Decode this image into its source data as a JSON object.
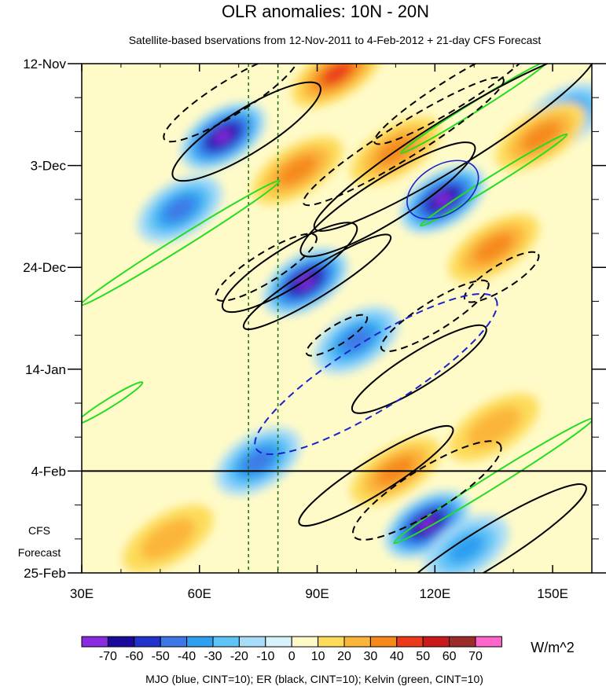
{
  "chart_data": {
    "type": "heatmap",
    "title": "OLR anomalies: 10N - 20N",
    "subtitle": "Satellite-based bservations from 12-Nov-2011 to 4-Feb-2012 + 21-day CFS Forecast",
    "x_axis": {
      "range": [
        30,
        160
      ],
      "ticks": [
        30,
        60,
        90,
        120,
        150
      ],
      "tick_labels": [
        "30E",
        "60E",
        "90E",
        "120E",
        "150E"
      ]
    },
    "y_axis": {
      "range_days": [
        0,
        105
      ],
      "ticks_days": [
        0,
        21,
        42,
        63,
        84,
        105
      ],
      "tick_labels": [
        "12-Nov",
        "3-Dec",
        "24-Dec",
        "14-Jan",
        "4-Feb",
        "25-Feb"
      ]
    },
    "forecast_start_day": 84,
    "forecast_label": [
      "CFS",
      "Forecast"
    ],
    "reference_lines_lon": [
      72.5,
      80
    ],
    "colorbar": {
      "unit": "W/m^2",
      "levels": [
        -70,
        -60,
        -50,
        -40,
        -30,
        -20,
        -10,
        0,
        10,
        20,
        30,
        40,
        50,
        60,
        70
      ],
      "level_labels": [
        "-70",
        "-60",
        "-50",
        "-40",
        "-30",
        "-20",
        "-10",
        "0",
        "10",
        "20",
        "30",
        "40",
        "50",
        "60",
        "70"
      ],
      "colors": [
        "#8a2be2",
        "#1a0a9c",
        "#2233cc",
        "#3f78e6",
        "#2f9ff0",
        "#5ec4f6",
        "#a8dcf8",
        "#d8f2fc",
        "#fffbc8",
        "#fddb5a",
        "#fbb53a",
        "#f58a1a",
        "#ea3a1a",
        "#c81a1a",
        "#9c2b2b",
        "#ff66cc"
      ]
    },
    "negative_centers": [
      {
        "lon": 66,
        "day": 15,
        "min": -70
      },
      {
        "lon": 122,
        "day": 28,
        "min": -70
      },
      {
        "lon": 87,
        "day": 45,
        "min": -70
      },
      {
        "lon": 100,
        "day": 57,
        "min": -40
      },
      {
        "lon": 118,
        "day": 95,
        "min": -70
      },
      {
        "lon": 153,
        "day": 11,
        "min": -40
      },
      {
        "lon": 55,
        "day": 30,
        "min": -40
      },
      {
        "lon": 75,
        "day": 82,
        "min": -40
      },
      {
        "lon": 128,
        "day": 100,
        "min": -30
      }
    ],
    "positive_centers": [
      {
        "lon": 85,
        "day": 22,
        "max": 30
      },
      {
        "lon": 110,
        "day": 18,
        "max": 30
      },
      {
        "lon": 135,
        "day": 38,
        "max": 30
      },
      {
        "lon": 147,
        "day": 15,
        "max": 30
      },
      {
        "lon": 95,
        "day": 2,
        "max": 40
      },
      {
        "lon": 110,
        "day": 84,
        "max": 30
      },
      {
        "lon": 135,
        "day": 75,
        "max": 20
      },
      {
        "lon": 52,
        "day": 98,
        "max": 20
      }
    ],
    "contour_sets": [
      {
        "name": "MJO",
        "color": "blue",
        "cint": 10
      },
      {
        "name": "ER",
        "color": "black",
        "cint": 10
      },
      {
        "name": "Kelvin",
        "color": "green",
        "cint": 10
      }
    ],
    "contours": {
      "er_solid": [
        {
          "lon": 72,
          "day": 14,
          "a": 22,
          "b": 4.5
        },
        {
          "lon": 125,
          "day": 16,
          "a": 42,
          "b": 5
        },
        {
          "lon": 108,
          "day": 28,
          "a": 26,
          "b": 4.5
        },
        {
          "lon": 83,
          "day": 42,
          "a": 20,
          "b": 4
        },
        {
          "lon": 90,
          "day": 45,
          "a": 22,
          "b": 3
        },
        {
          "lon": 116,
          "day": 63,
          "a": 20,
          "b": 3.5
        },
        {
          "lon": 105,
          "day": 85,
          "a": 23,
          "b": 3.5
        },
        {
          "lon": 133,
          "day": 100,
          "a": 30,
          "b": 4
        }
      ],
      "er_dashed": [
        {
          "lon": 68,
          "day": 7,
          "a": 20,
          "b": 3.5
        },
        {
          "lon": 125,
          "day": 6,
          "a": 24,
          "b": 3
        },
        {
          "lon": 112,
          "day": 16,
          "a": 30,
          "b": 3.5
        },
        {
          "lon": 77,
          "day": 42,
          "a": 15,
          "b": 3
        },
        {
          "lon": 95,
          "day": 56,
          "a": 9,
          "b": 2
        },
        {
          "lon": 120,
          "day": 52,
          "a": 16,
          "b": 3
        },
        {
          "lon": 137,
          "day": 44,
          "a": 11,
          "b": 2.5
        },
        {
          "lon": 118,
          "day": 88,
          "a": 22,
          "b": 4.5
        }
      ],
      "mjo_dashed": {
        "lon": 105,
        "day": 64,
        "a": 36,
        "b": 7
      },
      "mjo_solid": {
        "lon": 122,
        "day": 26,
        "a": 10,
        "b": 5
      },
      "kelvin": [
        {
          "lon": 55,
          "day": 37,
          "a": 30,
          "b": 1.2
        },
        {
          "lon": 130,
          "day": 9,
          "a": 22,
          "b": 1
        },
        {
          "lon": 135,
          "day": 24,
          "a": 22,
          "b": 1
        },
        {
          "lon": 135,
          "day": 86,
          "a": 30,
          "b": 1.3
        },
        {
          "lon": 37,
          "day": 70,
          "a": 10,
          "b": 0.9
        }
      ]
    },
    "footnote": "MJO (blue, CINT=10); ER (black, CINT=10); Kelvin (green, CINT=10)"
  }
}
